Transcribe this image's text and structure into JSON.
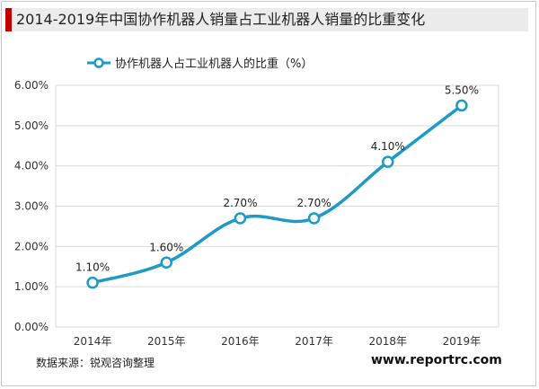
{
  "title": "2014-2019年中国协作机器人销量占工业机器人销量的比重变化",
  "legend_label": "协作机器人占工业机器人的比重（%）",
  "source_text": "数据来源：锐观咨询整理",
  "website_text": "www.reportrc.com",
  "colors": {
    "line": "#1e9ac4",
    "accent": "#c00000",
    "grid": "#d9d9d9"
  },
  "chart_data": {
    "type": "line",
    "categories": [
      "2014年",
      "2015年",
      "2016年",
      "2017年",
      "2018年",
      "2019年"
    ],
    "series": [
      {
        "name": "协作机器人占工业机器人的比重（%）",
        "values": [
          1.1,
          1.6,
          2.7,
          2.7,
          4.1,
          5.5
        ],
        "labels": [
          "1.10%",
          "1.60%",
          "2.70%",
          "2.70%",
          "4.10%",
          "5.50%"
        ]
      }
    ],
    "y_ticks": [
      "0.00%",
      "1.00%",
      "2.00%",
      "3.00%",
      "4.00%",
      "5.00%",
      "6.00%"
    ],
    "ylim": [
      0,
      6
    ],
    "grid": true,
    "legend_position": "top"
  }
}
